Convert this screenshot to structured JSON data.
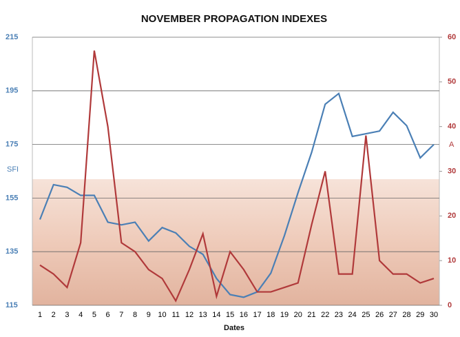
{
  "chart_data": {
    "type": "line",
    "title": "NOVEMBER PROPAGATION INDEXES",
    "x_label": "Dates",
    "x": [
      1,
      2,
      3,
      4,
      5,
      6,
      7,
      8,
      9,
      10,
      11,
      12,
      13,
      14,
      15,
      16,
      17,
      18,
      19,
      20,
      21,
      22,
      23,
      24,
      25,
      26,
      27,
      28,
      29,
      30
    ],
    "xlim": [
      1,
      30
    ],
    "ylim": [
      115,
      215
    ],
    "yticks": [
      115,
      135,
      155,
      175,
      195,
      215
    ],
    "y2lim": [
      0,
      60
    ],
    "y2ticks": [
      0,
      10,
      20,
      30,
      40,
      50,
      60
    ],
    "grid": true,
    "series": [
      {
        "name": "SFI",
        "color": "#4a7fb5",
        "values": [
          147,
          160,
          159,
          156,
          156,
          146,
          145,
          146,
          139,
          144,
          142,
          137,
          134,
          125,
          119,
          118,
          120,
          127,
          141,
          157,
          172,
          190,
          194,
          178,
          179,
          180,
          187,
          182,
          170,
          175
        ]
      },
      {
        "name": "A",
        "color": "#b0393a",
        "axis": "y2",
        "values": [
          9,
          7,
          4,
          14,
          57,
          40,
          14,
          12,
          8,
          6,
          1,
          8,
          16,
          2,
          12,
          8,
          3,
          3,
          4,
          5,
          18,
          30,
          7,
          7,
          38,
          10,
          7,
          7,
          5,
          6
        ]
      }
    ]
  }
}
